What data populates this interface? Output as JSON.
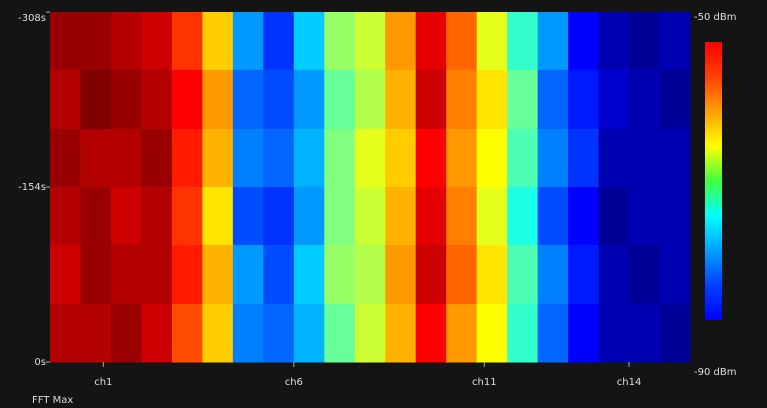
{
  "chart_data": {
    "type": "heatmap",
    "annotation": "FFT Max",
    "x_bins": [
      2405,
      2409,
      2413,
      2417,
      2421,
      2425,
      2429,
      2433,
      2437,
      2441,
      2445,
      2449,
      2453,
      2457,
      2461,
      2465,
      2469,
      2473,
      2477,
      2481,
      2485,
      2489
    ],
    "y_bins": [
      -308,
      -257,
      -205,
      -154,
      -103,
      -51,
      0
    ],
    "xlim": [
      2405,
      2489
    ],
    "ylim": [
      -308,
      0
    ],
    "zlim": [
      -90,
      -50
    ],
    "xticks": [
      {
        "value": 2412,
        "label": "ch1"
      },
      {
        "value": 2437,
        "label": "ch6"
      },
      {
        "value": 2462,
        "label": "ch11"
      },
      {
        "value": 2481,
        "label": "ch14"
      }
    ],
    "yticks": [
      {
        "value": -308,
        "label": "-308s"
      },
      {
        "value": -154,
        "label": "-154s"
      },
      {
        "value": 0,
        "label": "0s"
      }
    ],
    "zticks": [
      {
        "value": -50,
        "label": "-50 dBm"
      },
      {
        "value": -90,
        "label": "-90 dBm"
      }
    ],
    "values": [
      [
        -51,
        -51,
        -52,
        -53,
        -57,
        -63,
        -79,
        -83,
        -77,
        -69,
        -67,
        -61,
        -54,
        -59,
        -66,
        -73,
        -79,
        -85,
        -88,
        -89,
        -88
      ],
      [
        -52,
        -50,
        -51,
        -52,
        -55,
        -61,
        -81,
        -82,
        -79,
        -71,
        -68,
        -62,
        -53,
        -60,
        -64,
        -71,
        -81,
        -84,
        -87,
        -88,
        -89
      ],
      [
        -51,
        -52,
        -52,
        -51,
        -56,
        -62,
        -80,
        -81,
        -78,
        -70,
        -66,
        -63,
        -55,
        -61,
        -65,
        -72,
        -80,
        -83,
        -88,
        -88,
        -88
      ],
      [
        -52,
        -51,
        -53,
        -52,
        -57,
        -64,
        -82,
        -83,
        -79,
        -70,
        -67,
        -62,
        -54,
        -60,
        -66,
        -74,
        -82,
        -85,
        -89,
        -88,
        -88
      ],
      [
        -53,
        -51,
        -52,
        -52,
        -56,
        -62,
        -79,
        -82,
        -77,
        -69,
        -68,
        -61,
        -53,
        -59,
        -64,
        -72,
        -80,
        -84,
        -88,
        -89,
        -88
      ],
      [
        -52,
        -52,
        -51,
        -53,
        -58,
        -63,
        -80,
        -81,
        -78,
        -71,
        -67,
        -62,
        -55,
        -61,
        -65,
        -73,
        -81,
        -85,
        -88,
        -88,
        -89
      ]
    ]
  }
}
